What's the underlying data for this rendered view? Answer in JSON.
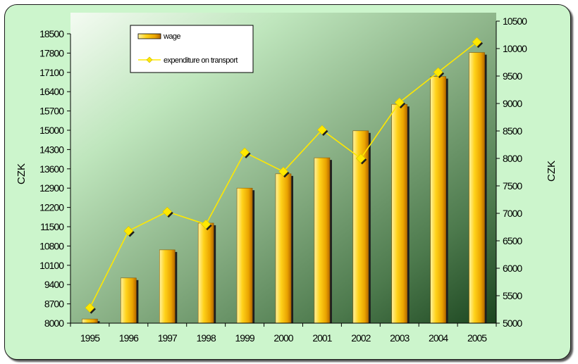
{
  "chart_data": {
    "type": "bar",
    "categories": [
      "1995",
      "1996",
      "1997",
      "1998",
      "1999",
      "2000",
      "2001",
      "2002",
      "2003",
      "2004",
      "2005"
    ],
    "series": [
      {
        "name": "wage",
        "type": "bar",
        "axis": "left",
        "values": [
          8150,
          9640,
          10660,
          11630,
          12900,
          13420,
          14000,
          14980,
          15940,
          16950,
          17820
        ],
        "color": "#f5c000"
      },
      {
        "name": "expenditure on transport",
        "type": "line",
        "axis": "right",
        "values": [
          5280,
          6680,
          7030,
          6800,
          8110,
          7760,
          8520,
          8000,
          9020,
          9570,
          10120
        ],
        "color": "#ffe800"
      }
    ],
    "y_left": {
      "label": "CZK",
      "ylim": [
        8000,
        18500
      ],
      "ticks": [
        "8000",
        "8700",
        "9400",
        "10100",
        "10800",
        "11500",
        "12200",
        "12900",
        "13600",
        "14300",
        "15000",
        "15700",
        "16400",
        "17100",
        "17800",
        "18500"
      ]
    },
    "y_right": {
      "label": "CZK",
      "ylim": [
        5000,
        10500
      ],
      "ticks": [
        "5000",
        "5500",
        "6000",
        "6500",
        "7000",
        "7500",
        "8000",
        "8500",
        "9000",
        "9500",
        "10000",
        "10500"
      ]
    },
    "grid": false,
    "legend": "top-left"
  }
}
